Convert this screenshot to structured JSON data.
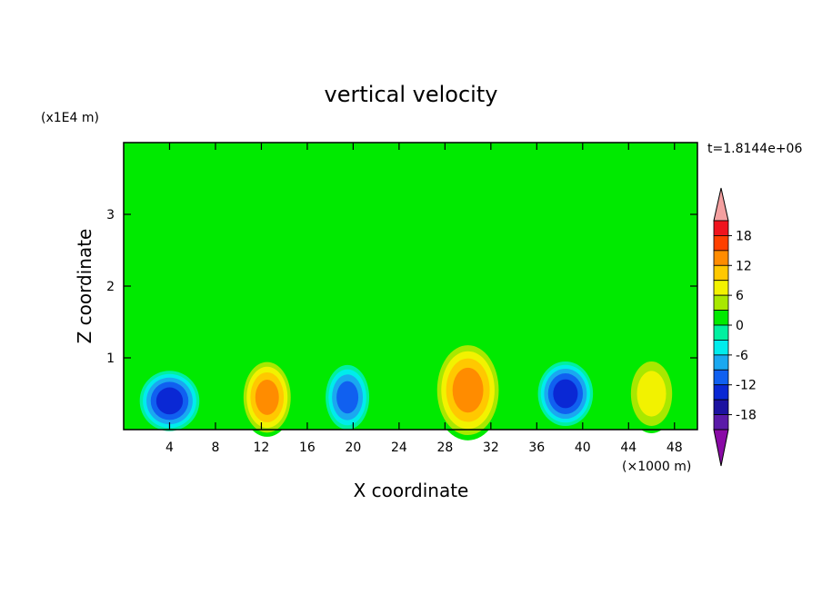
{
  "chart_data": {
    "type": "heatmap",
    "title": "vertical velocity",
    "xlabel": "X coordinate",
    "ylabel": "Z coordinate",
    "x_unit_label": "(×1000 m)",
    "y_unit_label": "(x1E4 m)",
    "time_label": "t=1.8144e+06",
    "xlim": [
      0,
      50
    ],
    "ylim": [
      0,
      4
    ],
    "x_ticks": [
      "4",
      "8",
      "12",
      "16",
      "20",
      "24",
      "28",
      "32",
      "36",
      "40",
      "44",
      "48"
    ],
    "y_ticks": [
      "1",
      "2",
      "3"
    ],
    "colorbar": {
      "labels": [
        "18",
        "12",
        "6",
        "0",
        "-6",
        "-12",
        "-18"
      ],
      "levels": [
        -21,
        -18,
        -15,
        -12,
        -9,
        -6,
        -3,
        0,
        3,
        6,
        9,
        12,
        15,
        18,
        21
      ],
      "colors": [
        "#8a0aa6",
        "#5a1aa8",
        "#1c12a0",
        "#0a28d4",
        "#1060f0",
        "#1aa8f0",
        "#00ecec",
        "#00f0a0",
        "#00ea00",
        "#a8e800",
        "#f2f200",
        "#ffc800",
        "#ff8c00",
        "#ff4000",
        "#f0141e",
        "#f4a0a0"
      ]
    },
    "background_level": 1,
    "features": [
      {
        "x": 4.0,
        "z": 0.4,
        "value": -13,
        "sx": 2.6,
        "sz": 0.42
      },
      {
        "x": 12.5,
        "z": 0.45,
        "value": 13,
        "sx": 2.3,
        "sz": 0.55
      },
      {
        "x": 19.5,
        "z": 0.45,
        "value": -11,
        "sx": 1.9,
        "sz": 0.45
      },
      {
        "x": 30.0,
        "z": 0.55,
        "value": 14,
        "sx": 3.0,
        "sz": 0.7
      },
      {
        "x": 38.5,
        "z": 0.5,
        "value": -12,
        "sx": 2.4,
        "sz": 0.45
      },
      {
        "x": 46.0,
        "z": 0.5,
        "value": 8,
        "sx": 2.2,
        "sz": 0.55
      }
    ]
  }
}
